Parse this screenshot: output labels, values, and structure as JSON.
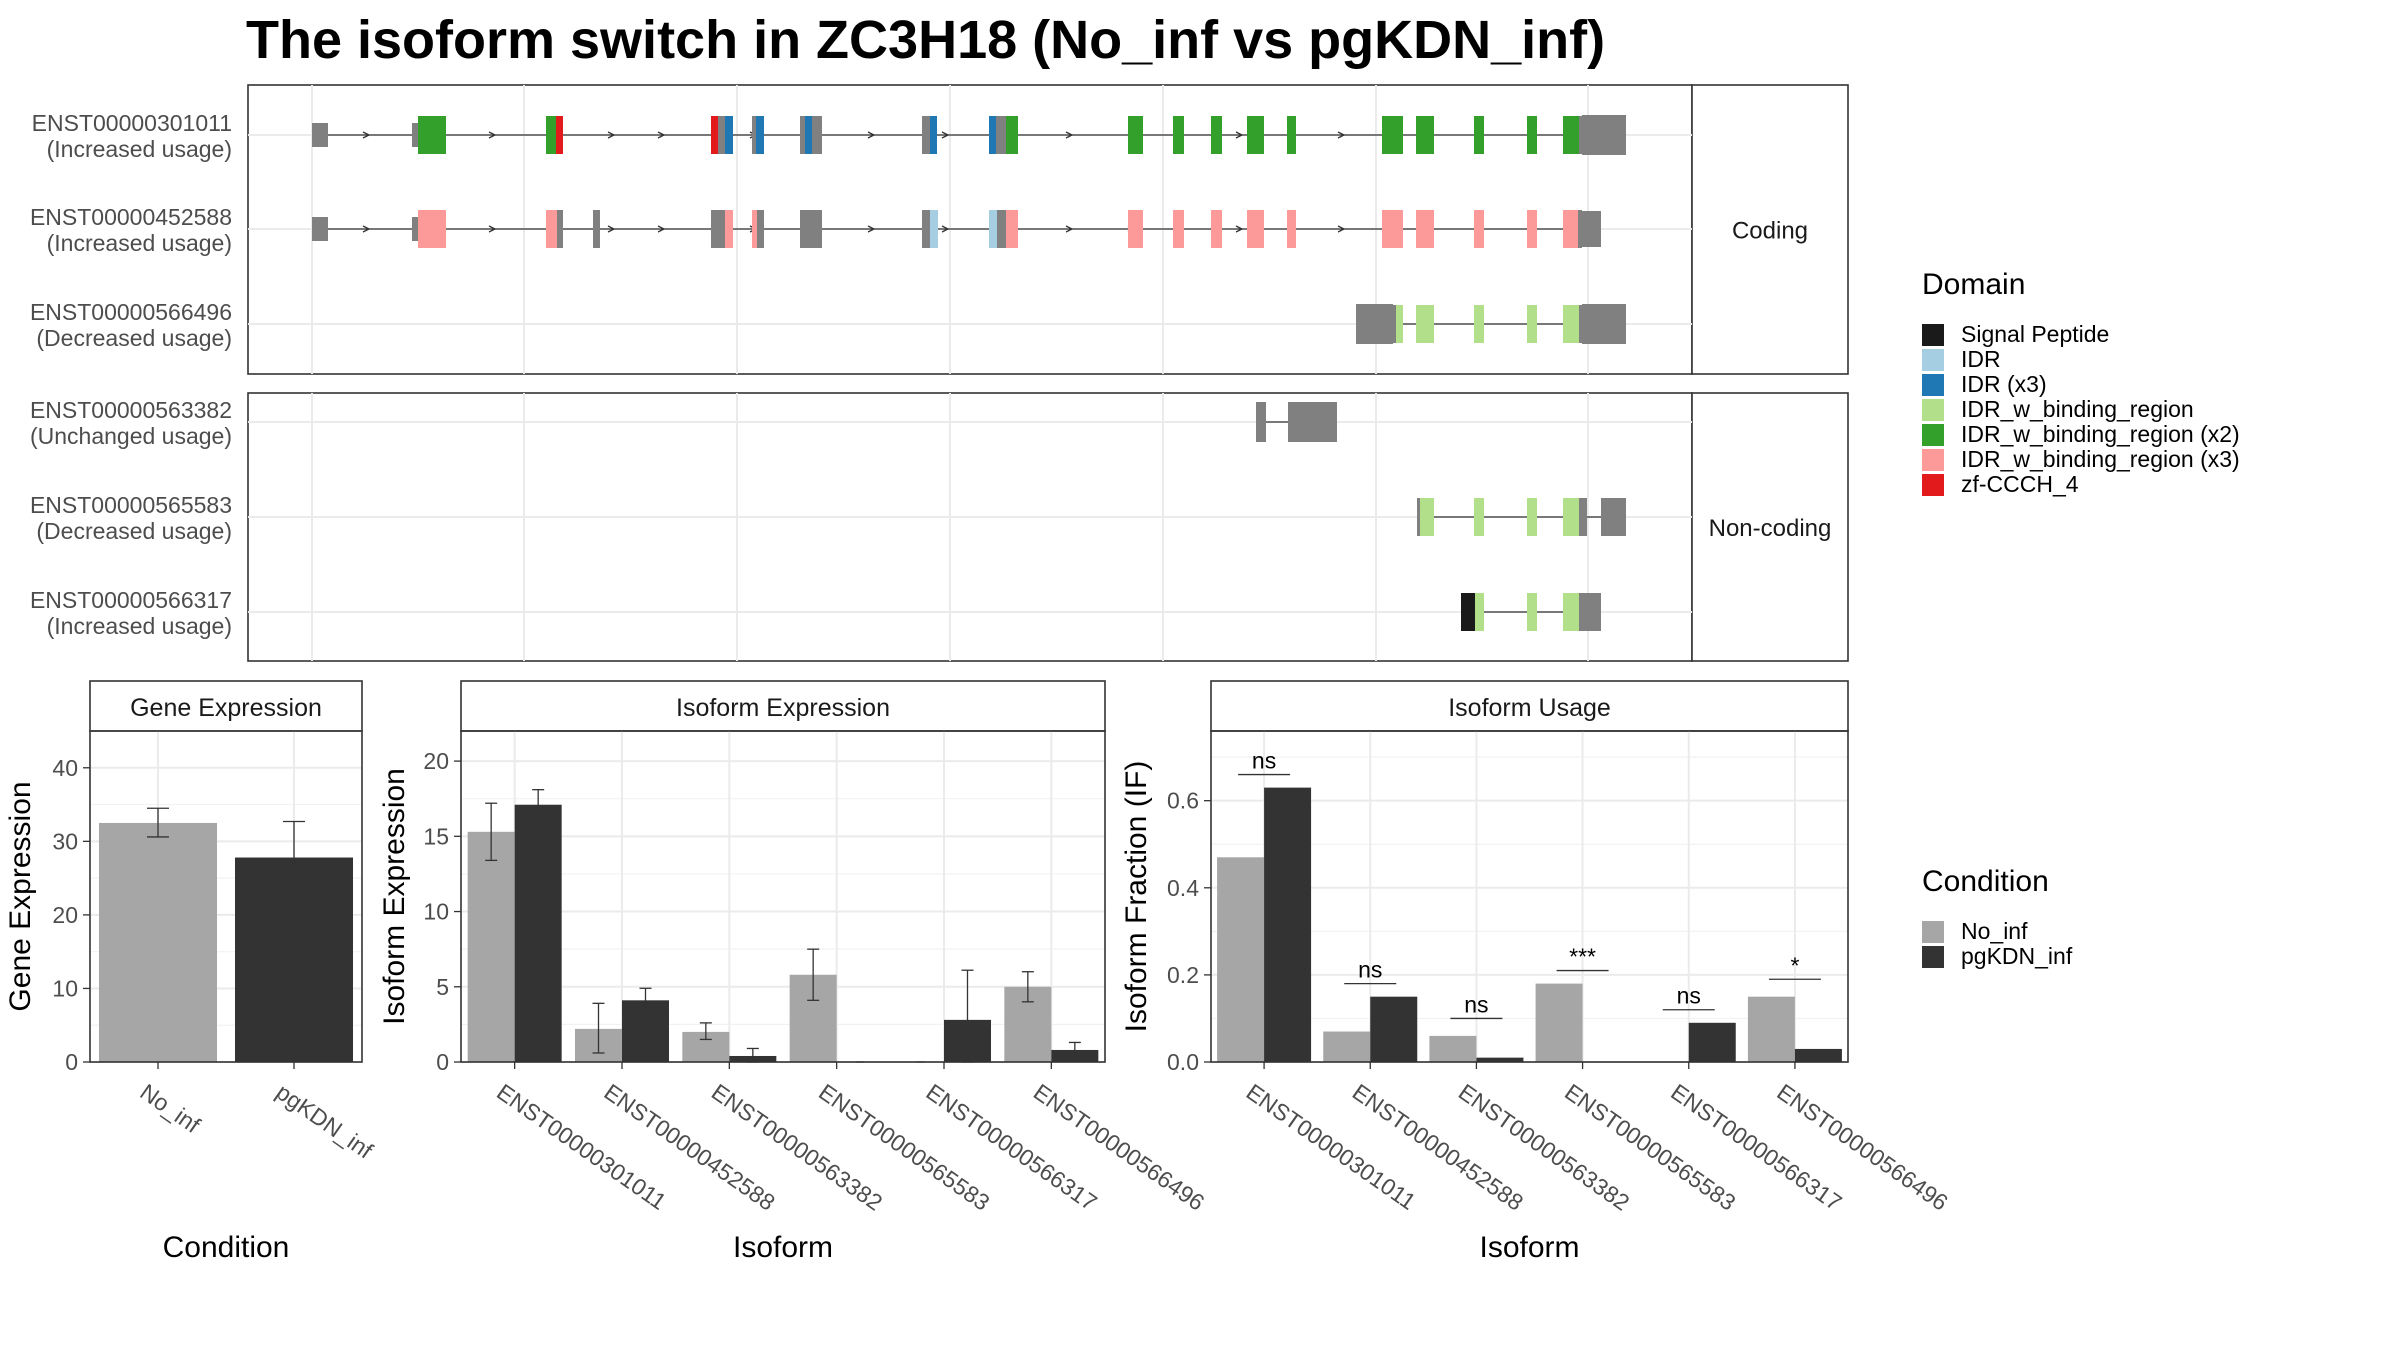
{
  "title": "The isoform switch in ZC3H18 (No_inf vs pgKDN_inf)",
  "colors": {
    "no_inf": "#a6a6a6",
    "pgkdn_inf": "#333333",
    "exon_gray": "#808080",
    "signal_peptide": "#1a1a1a",
    "idr": "#a6cee3",
    "idr_x3": "#1f78b4",
    "idr_bind": "#b2df8a",
    "idr_bind_x2": "#33a02c",
    "idr_bind_x3": "#fb9a99",
    "zf": "#e31a1c"
  },
  "structure": {
    "facets": [
      "Coding",
      "Non-coding"
    ],
    "coding": [
      {
        "id": "ENST00000301011",
        "usage": "(Increased usage)"
      },
      {
        "id": "ENST00000452588",
        "usage": "(Increased usage)"
      },
      {
        "id": "ENST00000566496",
        "usage": "(Decreased usage)"
      }
    ],
    "noncoding": [
      {
        "id": "ENST00000563382",
        "usage": "(Unchanged usage)"
      },
      {
        "id": "ENST00000565583",
        "usage": "(Decreased usage)"
      },
      {
        "id": "ENST00000566317",
        "usage": "(Increased usage)"
      }
    ]
  },
  "legend_domain": {
    "title": "Domain",
    "items": [
      {
        "label": "Signal Peptide",
        "color": "#1a1a1a"
      },
      {
        "label": "IDR",
        "color": "#a6cee3"
      },
      {
        "label": "IDR (x3)",
        "color": "#1f78b4"
      },
      {
        "label": "IDR_w_binding_region",
        "color": "#b2df8a"
      },
      {
        "label": "IDR_w_binding_region (x2)",
        "color": "#33a02c"
      },
      {
        "label": "IDR_w_binding_region (x3)",
        "color": "#fb9a99"
      },
      {
        "label": "zf-CCCH_4",
        "color": "#e31a1c"
      }
    ]
  },
  "legend_condition": {
    "title": "Condition",
    "items": [
      {
        "label": "No_inf",
        "color": "#a6a6a6"
      },
      {
        "label": "pgKDN_inf",
        "color": "#333333"
      }
    ]
  },
  "chart_data": [
    {
      "type": "bar",
      "title": "Gene Expression",
      "xlabel": "Condition",
      "ylabel": "Gene Expression",
      "ylim": [
        0,
        45
      ],
      "yticks": [
        0,
        10,
        20,
        30,
        40
      ],
      "categories": [
        "No_inf",
        "pgKDN_inf"
      ],
      "values": [
        32.5,
        27.8
      ],
      "error_low": [
        30.6,
        23.0
      ],
      "error_high": [
        34.5,
        32.7
      ]
    },
    {
      "type": "bar",
      "title": "Isoform Expression",
      "xlabel": "Isoform",
      "ylabel": "Isoform Expression",
      "ylim": [
        0,
        22
      ],
      "yticks": [
        0,
        5,
        10,
        15,
        20
      ],
      "categories": [
        "ENST00000301011",
        "ENST00000452588",
        "ENST00000563382",
        "ENST00000565583",
        "ENST00000566317",
        "ENST00000566496"
      ],
      "series": [
        {
          "name": "No_inf",
          "values": [
            15.3,
            2.2,
            2.0,
            5.8,
            0.0,
            5.0
          ],
          "error_low": [
            13.4,
            0.6,
            1.5,
            4.1,
            0.0,
            4.0
          ],
          "error_high": [
            17.2,
            3.9,
            2.6,
            7.5,
            0.0,
            6.0
          ]
        },
        {
          "name": "pgKDN_inf",
          "values": [
            17.1,
            4.1,
            0.4,
            0.0,
            2.8,
            0.8
          ],
          "error_low": [
            16.0,
            3.3,
            0.0,
            0.0,
            0.0,
            0.4
          ],
          "error_high": [
            18.1,
            4.9,
            0.9,
            0.0,
            6.1,
            1.3
          ]
        }
      ]
    },
    {
      "type": "bar",
      "title": "Isoform Usage",
      "xlabel": "Isoform",
      "ylabel": "Isoform Fraction (IF)",
      "ylim": [
        0,
        0.76
      ],
      "yticks": [
        "0.0",
        "0.2",
        "0.4",
        "0.6"
      ],
      "categories": [
        "ENST00000301011",
        "ENST00000452588",
        "ENST00000563382",
        "ENST00000565583",
        "ENST00000566317",
        "ENST00000566496"
      ],
      "series": [
        {
          "name": "No_inf",
          "values": [
            0.47,
            0.07,
            0.06,
            0.18,
            0.0,
            0.15
          ]
        },
        {
          "name": "pgKDN_inf",
          "values": [
            0.63,
            0.15,
            0.01,
            0.0,
            0.09,
            0.03
          ]
        }
      ],
      "significance": [
        "ns",
        "ns",
        "ns",
        "***",
        "ns",
        "*"
      ],
      "significance_y": [
        0.66,
        0.18,
        0.1,
        0.21,
        0.12,
        0.19
      ]
    }
  ]
}
